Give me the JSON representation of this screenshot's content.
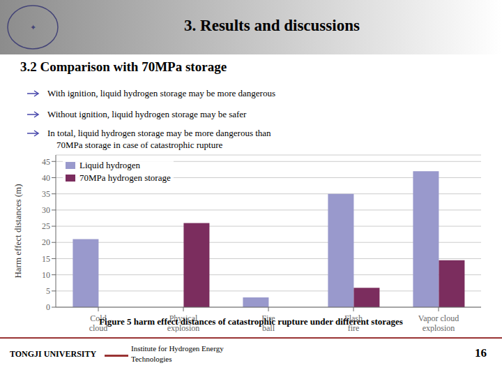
{
  "chart_data": {
    "type": "bar",
    "title": "3. Results and discussions",
    "subtitle": "3.2 Comparison with 70MPa storage",
    "logo": "✦",
    "bullets": [
      [
        "With ignition, liquid hydrogen storage may be more dangerous"
      ],
      [
        "Without ignition, liquid hydrogen storage may be safer"
      ],
      [
        "In total, liquid hydrogen storage may be more dangerous than",
        "    70MPa storage in case of catastrophic rupture"
      ]
    ],
    "categories": [
      "Cold\ncloud",
      "Physical\nexplosion",
      "Fire\nball",
      "Flash\nfire",
      "Vapor cloud\nexplosion"
    ],
    "series": [
      {
        "name": "Liquid hydrogen",
        "color": "#9999cc",
        "values": [
          21,
          0,
          3,
          35,
          42
        ]
      },
      {
        "name": "70MPa hydrogen storage",
        "color": "#7b2d5e",
        "values": [
          0,
          26,
          0,
          6,
          14.5
        ]
      }
    ],
    "ylabel": "Harm effect distances (m)",
    "ylim": [
      0,
      47
    ],
    "yticks": [
      0,
      5,
      10,
      15,
      20,
      25,
      30,
      35,
      40,
      45
    ],
    "grid": true,
    "legend": "upper left",
    "caption": "Figure 5 harm effect distances of catastrophic rupture under different storages",
    "footer_left": "TONGJI UNIVERSITY",
    "footer_inst": [
      "Institute for Hydrogen Energy",
      "Technologies"
    ],
    "footer_right": "16"
  }
}
